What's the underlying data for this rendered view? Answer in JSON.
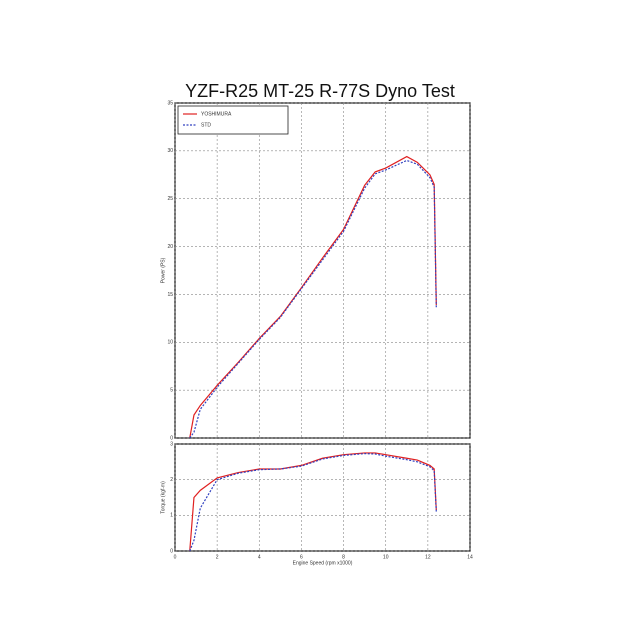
{
  "chart_data": [
    {
      "type": "line",
      "title": "YZF-R25 MT-25 R-77S Dyno Test",
      "y_label": "Power (PS)",
      "x": [
        0.7,
        0.9,
        1.2,
        2,
        3,
        4,
        5,
        6,
        7,
        8,
        9,
        9.5,
        10,
        11,
        11.5,
        12.1,
        12.3,
        12.4
      ],
      "series": [
        {
          "name": "YOSHIMURA",
          "color": "#e02020",
          "dash": false,
          "values": [
            0,
            2.4,
            3.4,
            5.5,
            7.9,
            10.4,
            12.7,
            15.7,
            18.8,
            21.8,
            26.4,
            27.8,
            28.2,
            29.4,
            28.8,
            27.5,
            26.5,
            13.9
          ]
        },
        {
          "name": "STD",
          "color": "#3040c0",
          "dash": true,
          "values": [
            0,
            0.6,
            3.0,
            5.3,
            7.8,
            10.3,
            12.6,
            15.6,
            18.6,
            21.6,
            26.1,
            27.6,
            28.0,
            29.0,
            28.6,
            27.2,
            26.2,
            13.6
          ]
        }
      ],
      "xlim": [
        0,
        14
      ],
      "ylim": [
        0,
        35
      ],
      "yticks": [
        0,
        5,
        10,
        15,
        20,
        25,
        30,
        35
      ],
      "xticks": [
        0,
        2,
        4,
        6,
        8,
        10,
        12,
        14
      ],
      "grid": true,
      "legend": "top-left"
    },
    {
      "type": "line",
      "y_label": "Torque (kgf-m)",
      "x_label": "Engine Speed (rpm x1000)",
      "x": [
        0.7,
        0.9,
        1.2,
        2,
        3,
        4,
        5,
        6,
        7,
        8,
        9,
        9.5,
        10,
        11,
        11.5,
        12.1,
        12.3,
        12.4
      ],
      "series": [
        {
          "color": "#e02020",
          "dash": false,
          "values": [
            0,
            1.5,
            1.7,
            2.05,
            2.2,
            2.3,
            2.3,
            2.4,
            2.6,
            2.7,
            2.75,
            2.75,
            2.7,
            2.6,
            2.55,
            2.4,
            2.3,
            1.15
          ]
        },
        {
          "color": "#3040c0",
          "dash": true,
          "values": [
            0,
            0.3,
            1.2,
            2.0,
            2.18,
            2.28,
            2.3,
            2.38,
            2.58,
            2.68,
            2.73,
            2.72,
            2.66,
            2.56,
            2.5,
            2.36,
            2.25,
            1.1
          ]
        }
      ],
      "xlim": [
        0,
        14
      ],
      "ylim": [
        0,
        3
      ],
      "yticks": [
        0,
        1,
        2,
        3
      ],
      "xticks": [
        0,
        2,
        4,
        6,
        8,
        10,
        12,
        14
      ],
      "grid": true
    }
  ]
}
